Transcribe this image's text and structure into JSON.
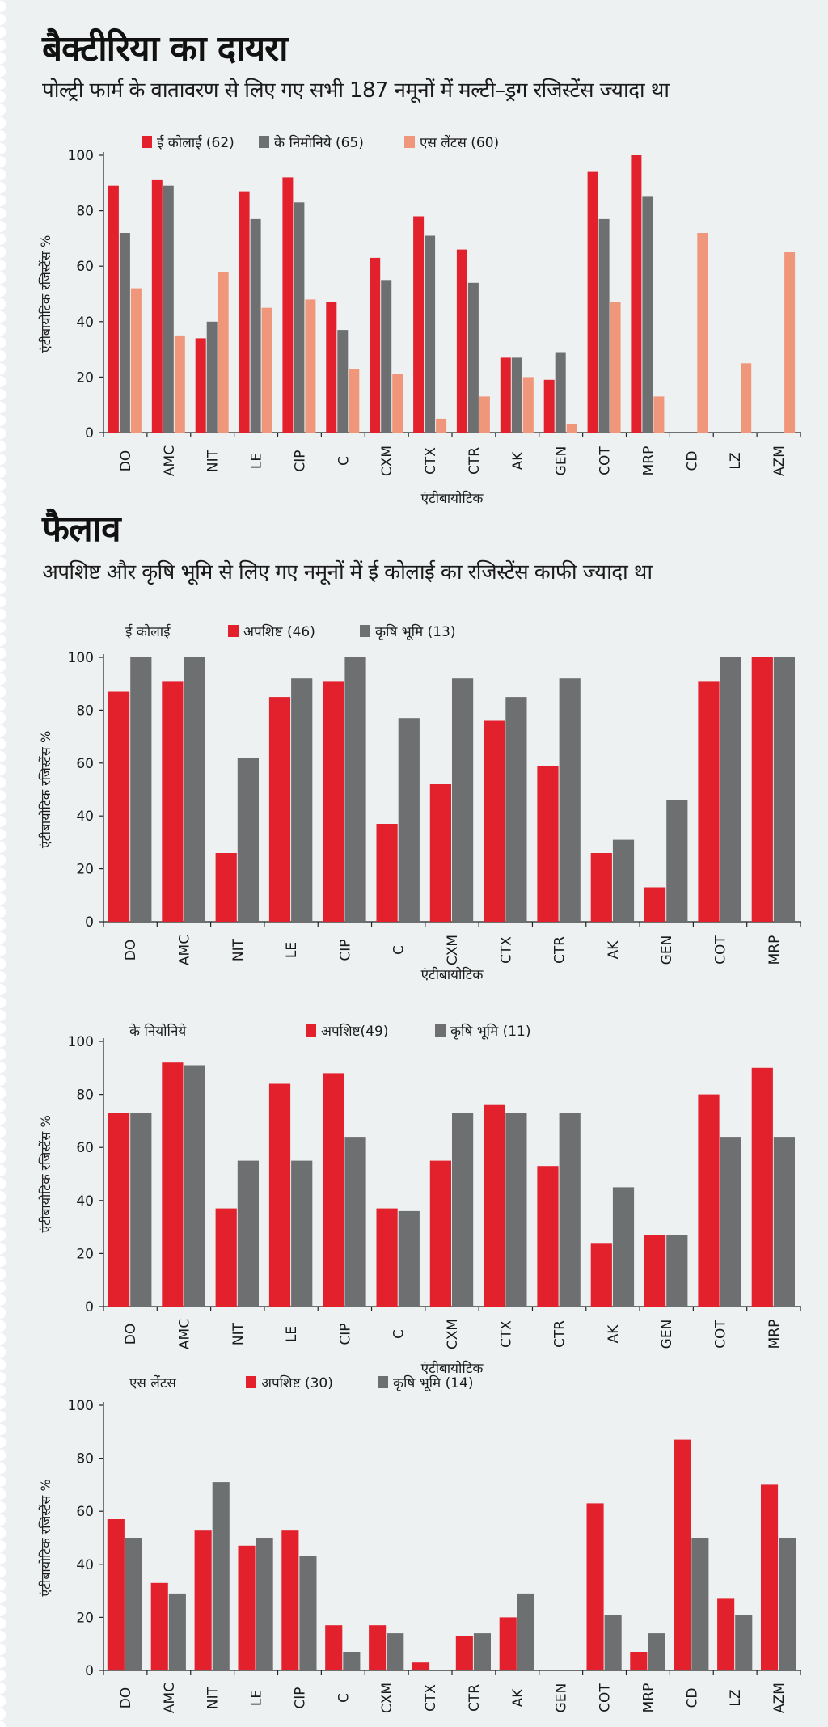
{
  "sections": {
    "scope": {
      "title": "बैक्टीरिया का दायरा",
      "subtitle": "पोल्ट्री फार्म के वातावरण से लिए गए सभी 187 नमूनों में मल्टी–ड्रग रजिस्टेंस ज्यादा था"
    },
    "spread": {
      "title": "फैलाव",
      "subtitle": "अपशिष्ट और कृषि भूमि से लिए गए नमूनों में ई कोलाई का रजिस्टेंस काफी ज्यादा था"
    }
  },
  "colors": {
    "red": "#e3212d",
    "gray": "#6e6f71",
    "salmon": "#f0967a",
    "axis": "#222222"
  },
  "chart_data": [
    {
      "type": "bar",
      "title": "",
      "ylabel": "एंटीबायोटिक रजिस्टेंस %",
      "xlabel": "एंटीबायोटिक",
      "ylim": [
        0,
        100
      ],
      "yticks": [
        0,
        20,
        40,
        60,
        80,
        100
      ],
      "legend_title": "",
      "legend_position": "top-left",
      "categories": [
        "DO",
        "AMC",
        "NIT",
        "LE",
        "CIP",
        "C",
        "CXM",
        "CTX",
        "CTR",
        "AK",
        "GEN",
        "COT",
        "MRP",
        "CD",
        "LZ",
        "AZM"
      ],
      "series": [
        {
          "name": "ई कोलाई (62)",
          "color": "#e3212d",
          "values": [
            89,
            91,
            34,
            87,
            92,
            47,
            63,
            78,
            66,
            27,
            19,
            94,
            100,
            null,
            null,
            null
          ]
        },
        {
          "name": "के निमोनिये (65)",
          "color": "#6e6f71",
          "values": [
            72,
            89,
            40,
            77,
            83,
            37,
            55,
            71,
            54,
            27,
            29,
            77,
            85,
            null,
            null,
            null
          ]
        },
        {
          "name": "एस लेंटस (60)",
          "color": "#f0967a",
          "values": [
            52,
            35,
            58,
            45,
            48,
            23,
            21,
            5,
            13,
            20,
            3,
            47,
            13,
            72,
            25,
            65
          ]
        }
      ]
    },
    {
      "type": "bar",
      "title": "",
      "ylabel": "एंटीबायोटिक रजिस्टेंस %",
      "xlabel": "एंटीबायोटिक",
      "ylim": [
        0,
        100
      ],
      "yticks": [
        0,
        20,
        40,
        60,
        80,
        100
      ],
      "legend_title": "ई कोलाई",
      "legend_position": "top-left",
      "categories": [
        "DO",
        "AMC",
        "NIT",
        "LE",
        "CIP",
        "C",
        "CXM",
        "CTX",
        "CTR",
        "AK",
        "GEN",
        "COT",
        "MRP"
      ],
      "series": [
        {
          "name": "अपशिष्ट (46)",
          "color": "#e3212d",
          "values": [
            87,
            91,
            26,
            85,
            91,
            37,
            52,
            76,
            59,
            26,
            13,
            91,
            100
          ]
        },
        {
          "name": "कृषि भूमि (13)",
          "color": "#6e6f71",
          "values": [
            100,
            100,
            62,
            92,
            100,
            77,
            92,
            85,
            92,
            31,
            46,
            100,
            100
          ]
        }
      ]
    },
    {
      "type": "bar",
      "title": "",
      "ylabel": "एंटीबायोटिक रजिस्टेंस %",
      "xlabel": "एंटीबायोटिक",
      "ylim": [
        0,
        100
      ],
      "yticks": [
        0,
        20,
        40,
        60,
        80,
        100
      ],
      "legend_title": "के नियोनिये",
      "legend_position": "top-left",
      "categories": [
        "DO",
        "AMC",
        "NIT",
        "LE",
        "CIP",
        "C",
        "CXM",
        "CTX",
        "CTR",
        "AK",
        "GEN",
        "COT",
        "MRP"
      ],
      "series": [
        {
          "name": "अपशिष्ट(49)",
          "color": "#e3212d",
          "values": [
            73,
            92,
            37,
            84,
            88,
            37,
            55,
            76,
            53,
            24,
            27,
            80,
            90
          ]
        },
        {
          "name": "कृषि भूमि (11)",
          "color": "#6e6f71",
          "values": [
            73,
            91,
            55,
            55,
            64,
            36,
            73,
            73,
            73,
            45,
            27,
            64,
            64
          ]
        }
      ]
    },
    {
      "type": "bar",
      "title": "",
      "ylabel": "एंटीबायोटिक रजिस्टेंस %",
      "xlabel": "",
      "ylim": [
        0,
        100
      ],
      "yticks": [
        0,
        20,
        40,
        60,
        80,
        100
      ],
      "legend_title": "एस लेंटस",
      "legend_position": "top-left",
      "categories": [
        "DO",
        "AMC",
        "NIT",
        "LE",
        "CIP",
        "C",
        "CXM",
        "CTX",
        "CTR",
        "AK",
        "GEN",
        "COT",
        "MRP",
        "CD",
        "LZ",
        "AZM"
      ],
      "series": [
        {
          "name": "अपशिष्ट (30)",
          "color": "#e3212d",
          "values": [
            57,
            33,
            53,
            47,
            53,
            17,
            17,
            3,
            13,
            20,
            0,
            63,
            7,
            87,
            27,
            70
          ]
        },
        {
          "name": "कृषि भूमि (14)",
          "color": "#6e6f71",
          "values": [
            50,
            29,
            71,
            50,
            43,
            7,
            14,
            0,
            14,
            29,
            0,
            21,
            14,
            50,
            21,
            50
          ]
        }
      ]
    }
  ]
}
